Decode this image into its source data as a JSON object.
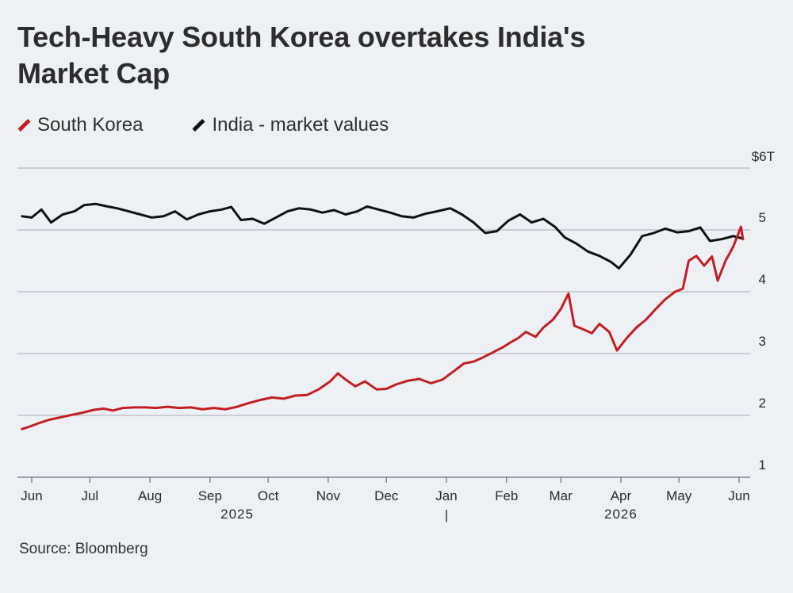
{
  "title": "Tech-Heavy South Korea overtakes India's Market Cap",
  "source": "Source: Bloomberg",
  "colors": {
    "south_korea": "#c41e23",
    "india": "#111111",
    "grid": "#a9adb4",
    "background": "#edf0f5"
  },
  "chart_data": {
    "type": "line",
    "title": "Tech-Heavy South Korea overtakes India's Market Cap",
    "xlabel": "",
    "ylabel": "",
    "ylim": [
      1,
      6
    ],
    "y_ticks": [
      {
        "value": 6,
        "label": "$6T"
      },
      {
        "value": 5,
        "label": "5"
      },
      {
        "value": 4,
        "label": "4"
      },
      {
        "value": 3,
        "label": "3"
      },
      {
        "value": 2,
        "label": "2"
      },
      {
        "value": 1,
        "label": "1"
      }
    ],
    "x_ticks": [
      {
        "date": "2025-06-01",
        "label": "Jun"
      },
      {
        "date": "2025-07-01",
        "label": "Jul"
      },
      {
        "date": "2025-08-01",
        "label": "Aug"
      },
      {
        "date": "2025-09-01",
        "label": "Sep"
      },
      {
        "date": "2025-10-01",
        "label": "Oct"
      },
      {
        "date": "2025-11-01",
        "label": "Nov"
      },
      {
        "date": "2025-12-01",
        "label": "Dec"
      },
      {
        "date": "2026-01-01",
        "label": "Jan"
      },
      {
        "date": "2026-02-01",
        "label": "Feb"
      },
      {
        "date": "2026-03-01",
        "label": "Mar"
      },
      {
        "date": "2026-04-01",
        "label": "Apr"
      },
      {
        "date": "2026-05-01",
        "label": "May"
      },
      {
        "date": "2026-06-01",
        "label": "Jun"
      }
    ],
    "year_labels": [
      {
        "date": "2025-09-15",
        "label": "2025"
      },
      {
        "date": "2026-04-01",
        "label": "2026"
      }
    ],
    "year_divider": {
      "date": "2026-01-01",
      "label": "|"
    },
    "grid": true,
    "legend_position": "top-left",
    "series": [
      {
        "name": "South Korea",
        "color": "#c41e23",
        "points": [
          [
            "2025-05-27",
            1.78
          ],
          [
            "2025-05-31",
            1.82
          ],
          [
            "2025-06-05",
            1.88
          ],
          [
            "2025-06-10",
            1.93
          ],
          [
            "2025-06-16",
            1.97
          ],
          [
            "2025-06-22",
            2.01
          ],
          [
            "2025-06-28",
            2.05
          ],
          [
            "2025-07-03",
            2.09
          ],
          [
            "2025-07-08",
            2.11
          ],
          [
            "2025-07-13",
            2.08
          ],
          [
            "2025-07-18",
            2.12
          ],
          [
            "2025-07-24",
            2.13
          ],
          [
            "2025-07-30",
            2.13
          ],
          [
            "2025-08-04",
            2.12
          ],
          [
            "2025-08-10",
            2.14
          ],
          [
            "2025-08-16",
            2.12
          ],
          [
            "2025-08-22",
            2.13
          ],
          [
            "2025-08-28",
            2.1
          ],
          [
            "2025-09-03",
            2.12
          ],
          [
            "2025-09-09",
            2.1
          ],
          [
            "2025-09-15",
            2.14
          ],
          [
            "2025-09-21",
            2.2
          ],
          [
            "2025-09-27",
            2.25
          ],
          [
            "2025-10-03",
            2.29
          ],
          [
            "2025-10-09",
            2.27
          ],
          [
            "2025-10-15",
            2.32
          ],
          [
            "2025-10-21",
            2.33
          ],
          [
            "2025-10-27",
            2.42
          ],
          [
            "2025-11-02",
            2.55
          ],
          [
            "2025-11-06",
            2.68
          ],
          [
            "2025-11-10",
            2.58
          ],
          [
            "2025-11-15",
            2.47
          ],
          [
            "2025-11-20",
            2.55
          ],
          [
            "2025-11-26",
            2.42
          ],
          [
            "2025-12-01",
            2.43
          ],
          [
            "2025-12-06",
            2.5
          ],
          [
            "2025-12-12",
            2.56
          ],
          [
            "2025-12-18",
            2.59
          ],
          [
            "2025-12-24",
            2.52
          ],
          [
            "2025-12-30",
            2.58
          ],
          [
            "2026-01-05",
            2.72
          ],
          [
            "2026-01-10",
            2.84
          ],
          [
            "2026-01-15",
            2.87
          ],
          [
            "2026-01-20",
            2.94
          ],
          [
            "2026-01-25",
            3.02
          ],
          [
            "2026-01-30",
            3.1
          ],
          [
            "2026-02-03",
            3.18
          ],
          [
            "2026-02-07",
            3.25
          ],
          [
            "2026-02-11",
            3.35
          ],
          [
            "2026-02-16",
            3.27
          ],
          [
            "2026-02-20",
            3.42
          ],
          [
            "2026-02-25",
            3.55
          ],
          [
            "2026-03-01",
            3.72
          ],
          [
            "2026-03-05",
            3.97
          ],
          [
            "2026-03-08",
            3.45
          ],
          [
            "2026-03-12",
            3.4
          ],
          [
            "2026-03-17",
            3.33
          ],
          [
            "2026-03-21",
            3.48
          ],
          [
            "2026-03-26",
            3.35
          ],
          [
            "2026-03-30",
            3.05
          ],
          [
            "2026-04-04",
            3.25
          ],
          [
            "2026-04-09",
            3.42
          ],
          [
            "2026-04-14",
            3.55
          ],
          [
            "2026-04-19",
            3.72
          ],
          [
            "2026-04-24",
            3.88
          ],
          [
            "2026-04-29",
            4.0
          ],
          [
            "2026-05-03",
            4.05
          ],
          [
            "2026-05-06",
            4.5
          ],
          [
            "2026-05-10",
            4.58
          ],
          [
            "2026-05-14",
            4.42
          ],
          [
            "2026-05-18",
            4.57
          ],
          [
            "2026-05-21",
            4.18
          ],
          [
            "2026-05-25",
            4.5
          ],
          [
            "2026-05-29",
            4.73
          ],
          [
            "2026-06-02",
            5.05
          ],
          [
            "2026-06-03",
            4.85
          ]
        ]
      },
      {
        "name": "India - market values",
        "color": "#111111",
        "points": [
          [
            "2025-05-27",
            5.22
          ],
          [
            "2025-06-01",
            5.2
          ],
          [
            "2025-06-06",
            5.33
          ],
          [
            "2025-06-11",
            5.12
          ],
          [
            "2025-06-17",
            5.25
          ],
          [
            "2025-06-23",
            5.3
          ],
          [
            "2025-06-28",
            5.4
          ],
          [
            "2025-07-04",
            5.42
          ],
          [
            "2025-07-10",
            5.38
          ],
          [
            "2025-07-15",
            5.35
          ],
          [
            "2025-07-21",
            5.3
          ],
          [
            "2025-07-27",
            5.25
          ],
          [
            "2025-08-02",
            5.2
          ],
          [
            "2025-08-08",
            5.22
          ],
          [
            "2025-08-14",
            5.3
          ],
          [
            "2025-08-20",
            5.17
          ],
          [
            "2025-08-26",
            5.25
          ],
          [
            "2025-09-01",
            5.3
          ],
          [
            "2025-09-07",
            5.33
          ],
          [
            "2025-09-12",
            5.37
          ],
          [
            "2025-09-17",
            5.16
          ],
          [
            "2025-09-23",
            5.18
          ],
          [
            "2025-09-29",
            5.1
          ],
          [
            "2025-10-05",
            5.2
          ],
          [
            "2025-10-11",
            5.3
          ],
          [
            "2025-10-17",
            5.35
          ],
          [
            "2025-10-23",
            5.33
          ],
          [
            "2025-10-29",
            5.28
          ],
          [
            "2025-11-04",
            5.32
          ],
          [
            "2025-11-10",
            5.25
          ],
          [
            "2025-11-16",
            5.3
          ],
          [
            "2025-11-21",
            5.38
          ],
          [
            "2025-11-27",
            5.33
          ],
          [
            "2025-12-03",
            5.28
          ],
          [
            "2025-12-09",
            5.22
          ],
          [
            "2025-12-15",
            5.2
          ],
          [
            "2025-12-21",
            5.26
          ],
          [
            "2025-12-27",
            5.3
          ],
          [
            "2026-01-03",
            5.35
          ],
          [
            "2026-01-09",
            5.25
          ],
          [
            "2026-01-15",
            5.12
          ],
          [
            "2026-01-21",
            4.95
          ],
          [
            "2026-01-27",
            4.98
          ],
          [
            "2026-02-02",
            5.15
          ],
          [
            "2026-02-08",
            5.25
          ],
          [
            "2026-02-14",
            5.12
          ],
          [
            "2026-02-20",
            5.18
          ],
          [
            "2026-02-26",
            5.05
          ],
          [
            "2026-03-03",
            4.88
          ],
          [
            "2026-03-09",
            4.78
          ],
          [
            "2026-03-15",
            4.65
          ],
          [
            "2026-03-21",
            4.58
          ],
          [
            "2026-03-27",
            4.48
          ],
          [
            "2026-03-31",
            4.38
          ],
          [
            "2026-04-06",
            4.6
          ],
          [
            "2026-04-12",
            4.9
          ],
          [
            "2026-04-18",
            4.95
          ],
          [
            "2026-04-24",
            5.02
          ],
          [
            "2026-04-30",
            4.96
          ],
          [
            "2026-05-06",
            4.98
          ],
          [
            "2026-05-12",
            5.04
          ],
          [
            "2026-05-17",
            4.82
          ],
          [
            "2026-05-23",
            4.85
          ],
          [
            "2026-05-29",
            4.9
          ],
          [
            "2026-06-03",
            4.86
          ]
        ]
      }
    ]
  }
}
